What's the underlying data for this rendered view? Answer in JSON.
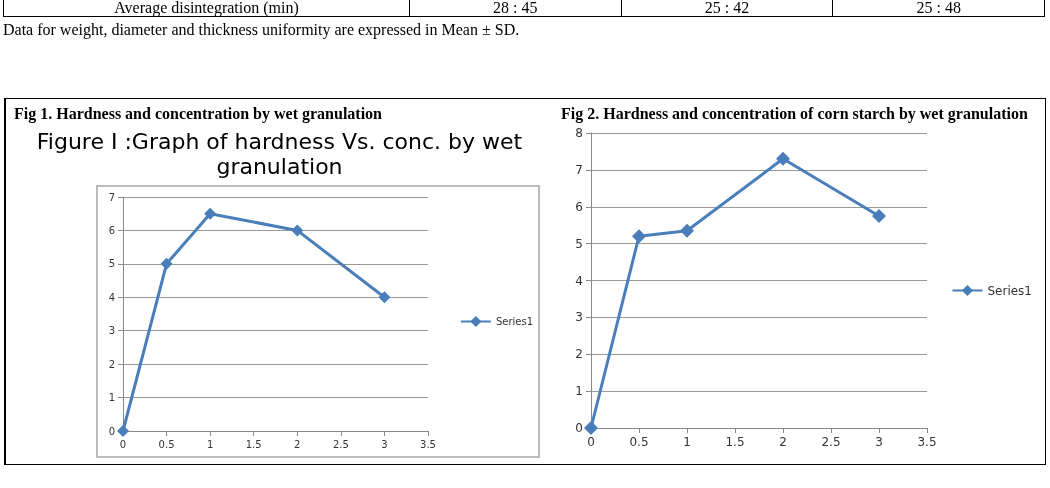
{
  "chart_data": [
    {
      "type": "other",
      "annotations": [
        "Average disintegration (min)",
        "28 : 45",
        "25 : 42",
        "25 : 48",
        "Data for weight, diameter and thickness uniformity are expressed in Mean ± SD."
      ]
    },
    {
      "type": "line",
      "title": "Fig 1. Hardness and concentration by wet granulation",
      "subtitle": "Figure I :Graph of hardness Vs. conc. by wet granulation",
      "x": [
        0,
        0.5,
        1,
        2,
        3
      ],
      "series": [
        {
          "name": "Series1",
          "color": "#4a7ebb",
          "values": [
            0,
            5,
            6.5,
            6,
            4
          ]
        }
      ],
      "xlim": [
        0,
        3.5
      ],
      "xticks": [
        0,
        0.5,
        1,
        1.5,
        2,
        2.5,
        3,
        3.5
      ],
      "ylim": [
        0,
        7
      ],
      "yticks": [
        0,
        1,
        2,
        3,
        4,
        5,
        6,
        7
      ],
      "grid": "y",
      "legend": "right",
      "marker": "diamond"
    },
    {
      "type": "line",
      "title": "Fig 2. Hardness and concentration of corn starch by wet granulation",
      "x": [
        0,
        0.5,
        1,
        2,
        3
      ],
      "series": [
        {
          "name": "Series1",
          "color": "#4a7ebb",
          "values": [
            0,
            5.2,
            5.35,
            7.3,
            5.75
          ]
        }
      ],
      "xlim": [
        0,
        3.5
      ],
      "xticks": [
        0,
        0.5,
        1,
        1.5,
        2,
        2.5,
        3,
        3.5
      ],
      "ylim": [
        0,
        8
      ],
      "yticks": [
        0,
        1,
        2,
        3,
        4,
        5,
        6,
        7,
        8
      ],
      "grid": "y",
      "legend": "right",
      "marker": "diamond"
    }
  ]
}
